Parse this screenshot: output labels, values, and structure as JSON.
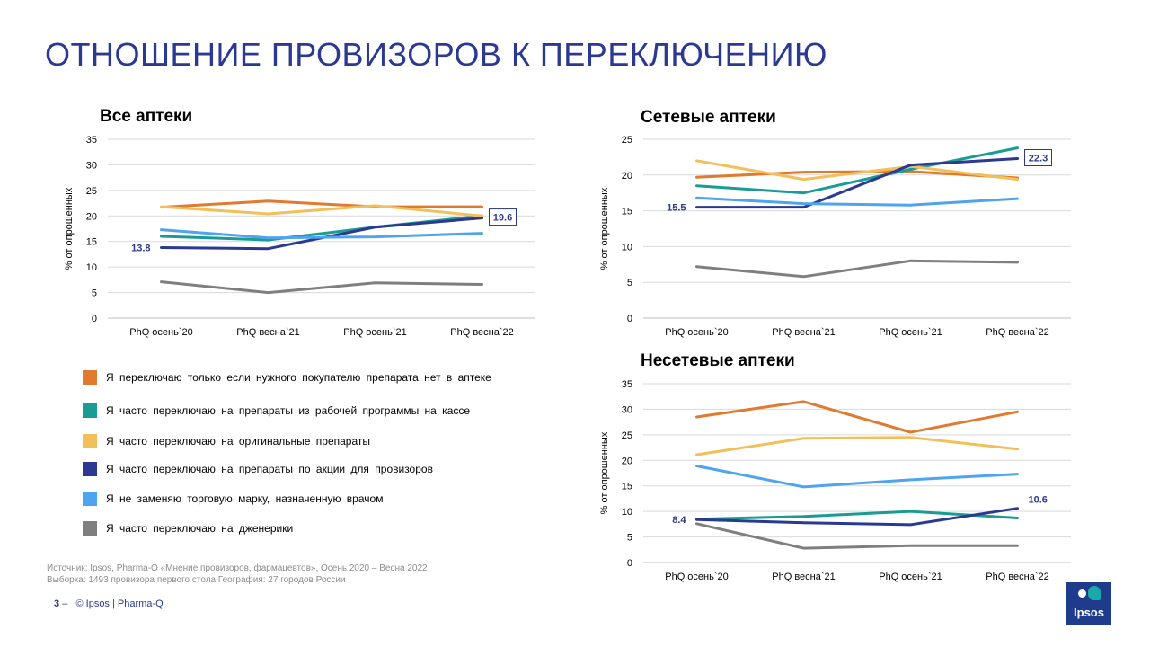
{
  "title": "ОТНОШЕНИЕ ПРОВИЗОРОВ К ПЕРЕКЛЮЧЕНИЮ",
  "colors": {
    "title": "#2b3990",
    "orange": "#e07a2e",
    "teal": "#1a9b93",
    "yellow": "#f2c05a",
    "navy": "#2b3990",
    "lightblue": "#4ea4ee",
    "gray": "#7f7f7f"
  },
  "legend": [
    {
      "label": "Я переключаю только если нужного покупателю препарата нет в аптеке",
      "color": "#e07a2e"
    },
    {
      "label": "Я часто переключаю на препараты из рабочей программы на кассе",
      "color": "#1a9b93"
    },
    {
      "label": "Я часто переключаю на оригинальные препараты",
      "color": "#f2c05a"
    },
    {
      "label": "Я часто переключаю на препараты по акции для провизоров",
      "color": "#2b3990"
    },
    {
      "label": "Я не заменяю торговую марку, назначенную врачом",
      "color": "#4ea4ee"
    },
    {
      "label": "Я часто переключаю на дженерики",
      "color": "#7f7f7f"
    }
  ],
  "chart_data": [
    {
      "type": "line",
      "title": "Все аптеки",
      "ylabel": "% от опрошенных",
      "categories": [
        "PhQ осень`20",
        "PhQ весна`21",
        "PhQ осень`21",
        "PhQ весна`22"
      ],
      "ylim": [
        0,
        35
      ],
      "yticks": [
        0,
        5,
        10,
        15,
        20,
        25,
        30,
        35
      ],
      "grid": true,
      "series": [
        {
          "color": "#e07a2e",
          "values": [
            21.7,
            22.9,
            21.8,
            21.8
          ]
        },
        {
          "color": "#1a9b93",
          "values": [
            16.0,
            15.3,
            17.8,
            20.0
          ]
        },
        {
          "color": "#f2c05a",
          "values": [
            21.8,
            20.4,
            22.0,
            20.0
          ]
        },
        {
          "color": "#2b3990",
          "values": [
            13.8,
            13.6,
            17.8,
            19.6
          ]
        },
        {
          "color": "#4ea4ee",
          "values": [
            17.3,
            15.7,
            15.9,
            16.6
          ]
        },
        {
          "color": "#7f7f7f",
          "values": [
            7.1,
            5.0,
            6.9,
            6.6
          ]
        }
      ],
      "labels": [
        {
          "text": "13.8",
          "position": "left",
          "series": 3,
          "index": 0
        },
        {
          "text": "19.6",
          "position": "right-boxed",
          "series": 3,
          "index": 3
        }
      ]
    },
    {
      "type": "line",
      "title": "Сетевые аптеки",
      "ylabel": "% от опрошенных",
      "categories": [
        "PhQ осень`20",
        "PhQ весна`21",
        "PhQ осень`21",
        "PhQ весна`22"
      ],
      "ylim": [
        0,
        25
      ],
      "yticks": [
        0,
        5,
        10,
        15,
        20,
        25
      ],
      "grid": true,
      "series": [
        {
          "color": "#e07a2e",
          "values": [
            19.7,
            20.4,
            20.5,
            19.6
          ]
        },
        {
          "color": "#1a9b93",
          "values": [
            18.5,
            17.5,
            20.8,
            23.8
          ]
        },
        {
          "color": "#f2c05a",
          "values": [
            22.0,
            19.4,
            21.2,
            19.4
          ]
        },
        {
          "color": "#2b3990",
          "values": [
            15.5,
            15.5,
            21.4,
            22.3
          ]
        },
        {
          "color": "#4ea4ee",
          "values": [
            16.8,
            16.0,
            15.8,
            16.7
          ]
        },
        {
          "color": "#7f7f7f",
          "values": [
            7.2,
            5.8,
            8.0,
            7.8
          ]
        }
      ],
      "labels": [
        {
          "text": "15.5",
          "position": "left",
          "series": 3,
          "index": 0
        },
        {
          "text": "22.3",
          "position": "right-boxed",
          "series": 3,
          "index": 3
        }
      ]
    },
    {
      "type": "line",
      "title": "Несетевые аптеки",
      "ylabel": "% от опрошенных",
      "categories": [
        "PhQ осень`20",
        "PhQ весна`21",
        "PhQ осень`21",
        "PhQ весна`22"
      ],
      "ylim": [
        0,
        35
      ],
      "yticks": [
        0,
        5,
        10,
        15,
        20,
        25,
        30,
        35
      ],
      "grid": true,
      "series": [
        {
          "color": "#e07a2e",
          "values": [
            28.5,
            31.5,
            25.5,
            29.5
          ]
        },
        {
          "color": "#1a9b93",
          "values": [
            8.5,
            9.0,
            10.0,
            8.7
          ]
        },
        {
          "color": "#f2c05a",
          "values": [
            21.1,
            24.3,
            24.5,
            22.2
          ]
        },
        {
          "color": "#2b3990",
          "values": [
            8.4,
            7.8,
            7.4,
            10.6
          ]
        },
        {
          "color": "#4ea4ee",
          "values": [
            18.9,
            14.8,
            16.2,
            17.3
          ]
        },
        {
          "color": "#7f7f7f",
          "values": [
            7.6,
            2.8,
            3.3,
            3.3
          ]
        }
      ],
      "labels": [
        {
          "text": "8.4",
          "position": "left",
          "series": 3,
          "index": 0
        },
        {
          "text": "10.6",
          "position": "right",
          "series": 3,
          "index": 3
        }
      ]
    }
  ],
  "source": {
    "line1": "Источник: Ipsos, Pharma-Q «Мнение провизоров, фармацевтов», Осень 2020 – Весна 2022",
    "line2": "Выборка: 1493 провизора первого стола  География: 27 городов России"
  },
  "footer": {
    "page": "3",
    "dash": "–",
    "text": "© Ipsos | Pharma-Q"
  },
  "logo": {
    "text": "Ipsos"
  }
}
